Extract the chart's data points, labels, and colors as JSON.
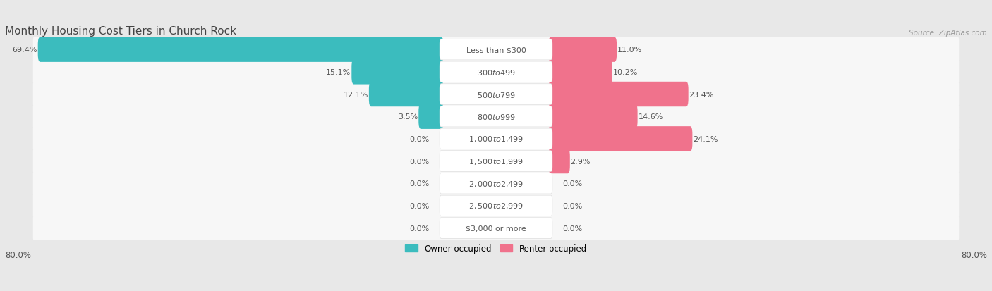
{
  "title": "Monthly Housing Cost Tiers in Church Rock",
  "source": "Source: ZipAtlas.com",
  "categories": [
    "Less than $300",
    "$300 to $499",
    "$500 to $799",
    "$800 to $999",
    "$1,000 to $1,499",
    "$1,500 to $1,999",
    "$2,000 to $2,499",
    "$2,500 to $2,999",
    "$3,000 or more"
  ],
  "owner_values": [
    69.4,
    15.1,
    12.1,
    3.5,
    0.0,
    0.0,
    0.0,
    0.0,
    0.0
  ],
  "renter_values": [
    11.0,
    10.2,
    23.4,
    14.6,
    24.1,
    2.9,
    0.0,
    0.0,
    0.0
  ],
  "owner_color": "#3bbcbe",
  "renter_color": "#f0728c",
  "renter_color_light": "#f5b8cc",
  "axis_max": 80.0,
  "owner_label": "Owner-occupied",
  "renter_label": "Renter-occupied",
  "bg_color": "#e8e8e8",
  "row_bg_color": "#f7f7f7",
  "title_color": "#444444",
  "text_color": "#555555",
  "source_color": "#999999",
  "title_fontsize": 11,
  "label_fontsize": 8.5,
  "category_fontsize": 8,
  "value_fontsize": 8
}
